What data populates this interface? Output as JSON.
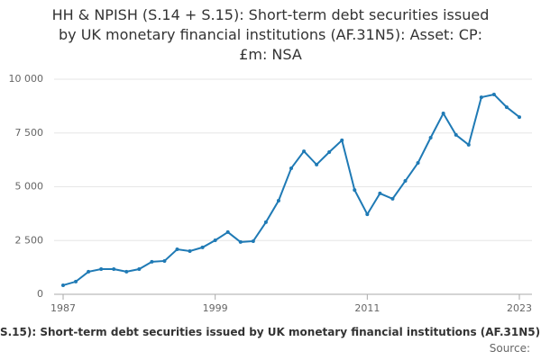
{
  "chart_data": {
    "type": "line",
    "title": "HH & NPISH (S.14 + S.15): Short-term debt securities issued by UK monetary financial institutions (AF.31N5): Asset: CP: £m: NSA",
    "source": "Source:",
    "x": [
      1987,
      1988,
      1989,
      1990,
      1991,
      1992,
      1993,
      1994,
      1995,
      1996,
      1997,
      1998,
      1999,
      2000,
      2001,
      2002,
      2003,
      2004,
      2005,
      2006,
      2007,
      2008,
      2009,
      2010,
      2011,
      2012,
      2013,
      2014,
      2015,
      2016,
      2017,
      2018,
      2019,
      2020,
      2021,
      2022,
      2023
    ],
    "series": [
      {
        "name": "HH & NPISH (S.14 + S.15): Short-term debt securities issued by UK monetary financial institutions (AF.31N5): Asset: CP: £m: NSA",
        "color": "#1f7ab5",
        "values": [
          420,
          590,
          1050,
          1170,
          1170,
          1050,
          1170,
          1510,
          1550,
          2090,
          2010,
          2180,
          2510,
          2890,
          2430,
          2470,
          3350,
          4350,
          5860,
          6650,
          6030,
          6610,
          7160,
          4850,
          3720,
          4690,
          4440,
          5270,
          6110,
          7280,
          8410,
          7410,
          6950,
          9160,
          9290,
          8700,
          8240
        ]
      }
    ],
    "xlim": [
      1987,
      2023
    ],
    "xticks": [
      1987,
      1999,
      2011,
      2023
    ],
    "ylim": [
      0,
      10000
    ],
    "yticks": [
      0,
      {
        "value": 2500,
        "label": "2 500"
      },
      {
        "value": 5000,
        "label": "5 000"
      },
      {
        "value": 7500,
        "label": "7 500"
      },
      {
        "value": 10000,
        "label": "10 000"
      }
    ],
    "grid": true
  }
}
